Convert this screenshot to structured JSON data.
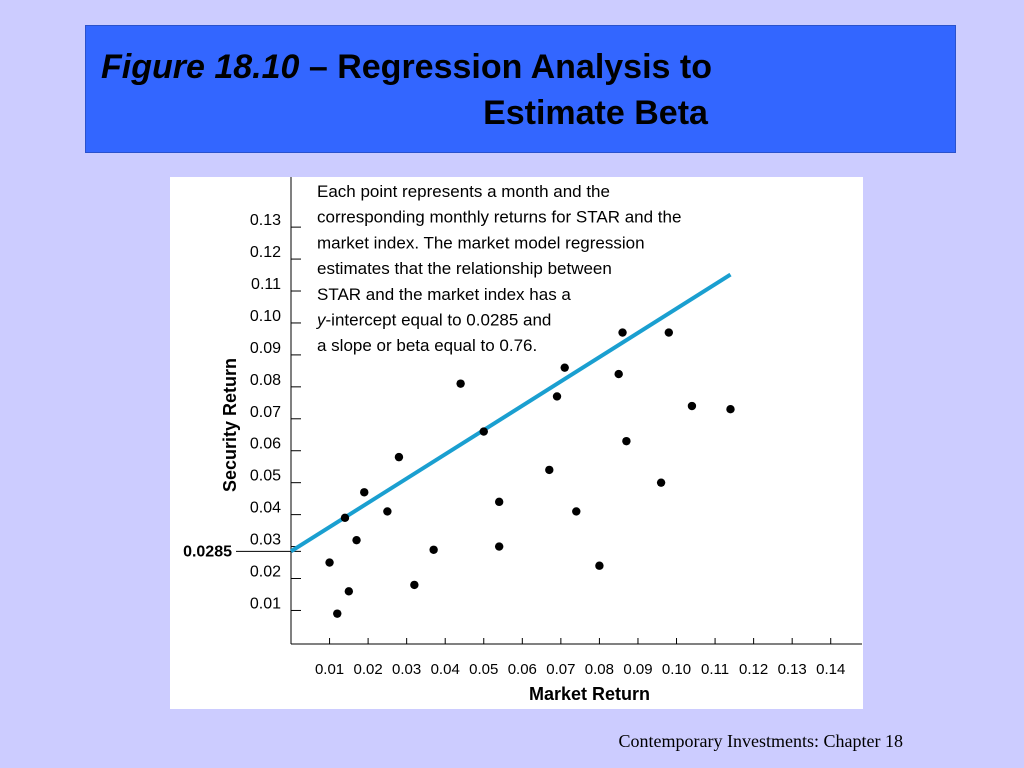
{
  "slide": {
    "title_italic": "Figure 18.10",
    "title_rest": " – Regression Analysis to",
    "title_line2": "Estimate Beta",
    "footer": "Contemporary Investments: Chapter 18"
  },
  "chart_data": {
    "type": "scatter",
    "title": "",
    "xlabel": "Market Return",
    "ylabel": "Security Return",
    "xlim": [
      0,
      0.145
    ],
    "ylim": [
      -0.0005,
      0.1435
    ],
    "xticks": [
      "0.01",
      "0.02",
      "0.03",
      "0.04",
      "0.05",
      "0.06",
      "0.07",
      "0.08",
      "0.09",
      "0.10",
      "0.11",
      "0.12",
      "0.13",
      "0.14"
    ],
    "yticks": [
      "0.01",
      "0.02",
      "0.03",
      "0.04",
      "0.05",
      "0.06",
      "0.07",
      "0.08",
      "0.09",
      "0.10",
      "0.11",
      "0.12",
      "0.13"
    ],
    "intercept_label": "0.0285",
    "annotation": [
      "Each point represents a month and the",
      "corresponding monthly returns for STAR and the",
      "market index. The market model regression",
      "estimates that the relationship between",
      "STAR and the market index has a",
      "y-intercept equal to 0.0285 and",
      "a slope or beta equal to 0.76."
    ],
    "regression": {
      "intercept": 0.0285,
      "slope": 0.76,
      "x_range": [
        0,
        0.114
      ],
      "color": "#1a9fd0"
    },
    "points": [
      {
        "x": 0.01,
        "y": 0.025
      },
      {
        "x": 0.012,
        "y": 0.009
      },
      {
        "x": 0.014,
        "y": 0.039
      },
      {
        "x": 0.015,
        "y": 0.016
      },
      {
        "x": 0.017,
        "y": 0.032
      },
      {
        "x": 0.019,
        "y": 0.047
      },
      {
        "x": 0.025,
        "y": 0.041
      },
      {
        "x": 0.028,
        "y": 0.058
      },
      {
        "x": 0.032,
        "y": 0.018
      },
      {
        "x": 0.037,
        "y": 0.029
      },
      {
        "x": 0.044,
        "y": 0.081
      },
      {
        "x": 0.05,
        "y": 0.066
      },
      {
        "x": 0.054,
        "y": 0.044
      },
      {
        "x": 0.054,
        "y": 0.03
      },
      {
        "x": 0.067,
        "y": 0.054
      },
      {
        "x": 0.069,
        "y": 0.077
      },
      {
        "x": 0.071,
        "y": 0.086
      },
      {
        "x": 0.074,
        "y": 0.041
      },
      {
        "x": 0.08,
        "y": 0.024
      },
      {
        "x": 0.085,
        "y": 0.084
      },
      {
        "x": 0.086,
        "y": 0.097
      },
      {
        "x": 0.087,
        "y": 0.063
      },
      {
        "x": 0.096,
        "y": 0.05
      },
      {
        "x": 0.098,
        "y": 0.097
      },
      {
        "x": 0.104,
        "y": 0.074
      },
      {
        "x": 0.114,
        "y": 0.073
      }
    ]
  }
}
